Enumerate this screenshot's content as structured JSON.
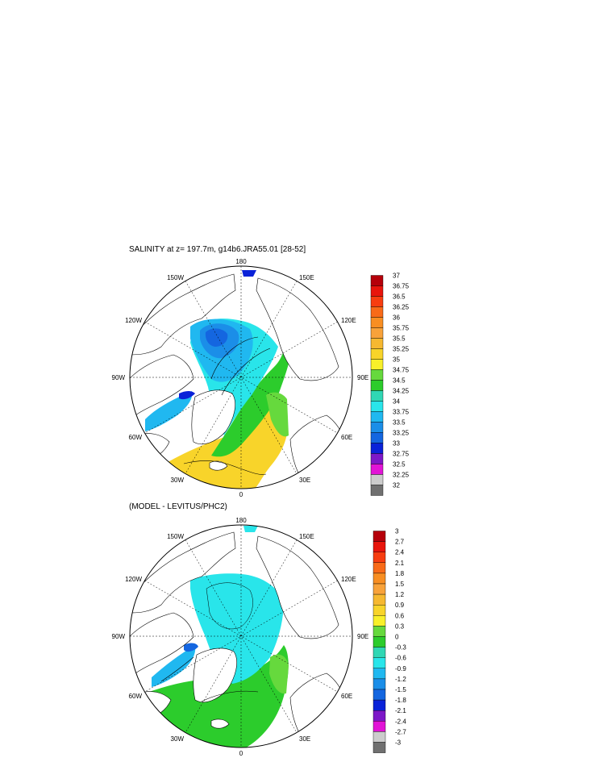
{
  "plot1": {
    "title": "SALINITY at z= 197.7m, g14b6.JRA55.01 [28-52]",
    "lon_labels": {
      "top": "180",
      "bottom": "0",
      "left": "90W",
      "right": "90E",
      "ul1": "150W",
      "ul2": "120W",
      "ur1": "150E",
      "ur2": "120E",
      "ll1": "60W",
      "ll2": "30W",
      "lr1": "60E",
      "lr2": "30E"
    },
    "colorbar": {
      "labels": [
        "37",
        "36.75",
        "36.5",
        "36.25",
        "36",
        "35.75",
        "35.5",
        "35.25",
        "35",
        "34.75",
        "34.5",
        "34.25",
        "34",
        "33.75",
        "33.5",
        "33.25",
        "33",
        "32.75",
        "32.5",
        "32.25",
        "32"
      ],
      "colors": [
        "#b5000a",
        "#e8150c",
        "#f73d10",
        "#f86a18",
        "#f88e22",
        "#f8a23a",
        "#f6b830",
        "#f8d42a",
        "#f8f02a",
        "#66d93d",
        "#2ccc2c",
        "#30d7b4",
        "#29e5ea",
        "#20b8f0",
        "#1b8ee8",
        "#1466e0",
        "#0a22d8",
        "#7d18c8",
        "#e214d6",
        "#cccccc",
        "#707070"
      ]
    }
  },
  "plot2": {
    "title": "(MODEL - LEVITUS/PHC2)",
    "lon_labels": {
      "top": "180",
      "bottom": "0",
      "left": "90W",
      "right": "90E",
      "ul1": "150W",
      "ul2": "120W",
      "ur1": "150E",
      "ur2": "120E",
      "ll1": "60W",
      "ll2": "30W",
      "lr1": "60E",
      "lr2": "30E"
    },
    "colorbar": {
      "labels": [
        "3",
        "2.7",
        "2.4",
        "2.1",
        "1.8",
        "1.5",
        "1.2",
        "0.9",
        "0.6",
        "0.3",
        "0",
        "-0.3",
        "-0.6",
        "-0.9",
        "-1.2",
        "-1.5",
        "-1.8",
        "-2.1",
        "-2.4",
        "-2.7",
        "-3"
      ],
      "colors": [
        "#b5000a",
        "#e8150c",
        "#f73d10",
        "#f86a18",
        "#f88e22",
        "#f8a23a",
        "#f6b830",
        "#f8d42a",
        "#f8f02a",
        "#66d93d",
        "#2ccc2c",
        "#30d7b4",
        "#29e5ea",
        "#20b8f0",
        "#1b8ee8",
        "#1466e0",
        "#0a22d8",
        "#7d18c8",
        "#e214d6",
        "#cccccc",
        "#707070"
      ]
    }
  }
}
